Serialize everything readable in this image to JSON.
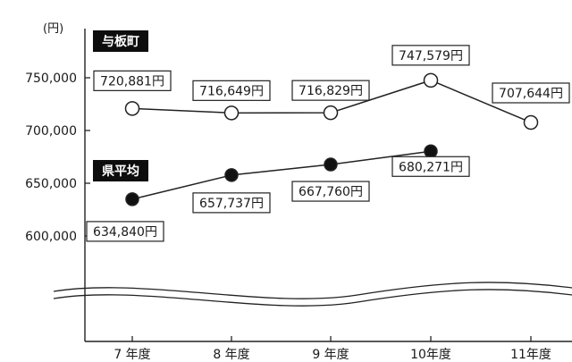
{
  "chart_data": {
    "type": "line",
    "ylabel": "(円)",
    "categories": [
      "7 年度",
      "8 年度",
      "9 年度",
      "10年度",
      "11年度"
    ],
    "yticks": [
      "750,000",
      "700,000",
      "650,000",
      "600,000"
    ],
    "ylim": [
      600000,
      750000
    ],
    "axis_break": true,
    "grid": false,
    "legend": "inline",
    "series": [
      {
        "name": "与板町",
        "values": [
          720881,
          716649,
          716829,
          747579,
          707644
        ],
        "labels": [
          "720,881円",
          "716,649円",
          "716,829円",
          "747,579円",
          "707,644円"
        ],
        "marker": "open-circle"
      },
      {
        "name": "県平均",
        "values": [
          634840,
          657737,
          667760,
          680271,
          null
        ],
        "labels": [
          "634,840円",
          "657,737円",
          "667,760円",
          "680,271円",
          ""
        ],
        "marker": "filled-circle"
      }
    ]
  }
}
